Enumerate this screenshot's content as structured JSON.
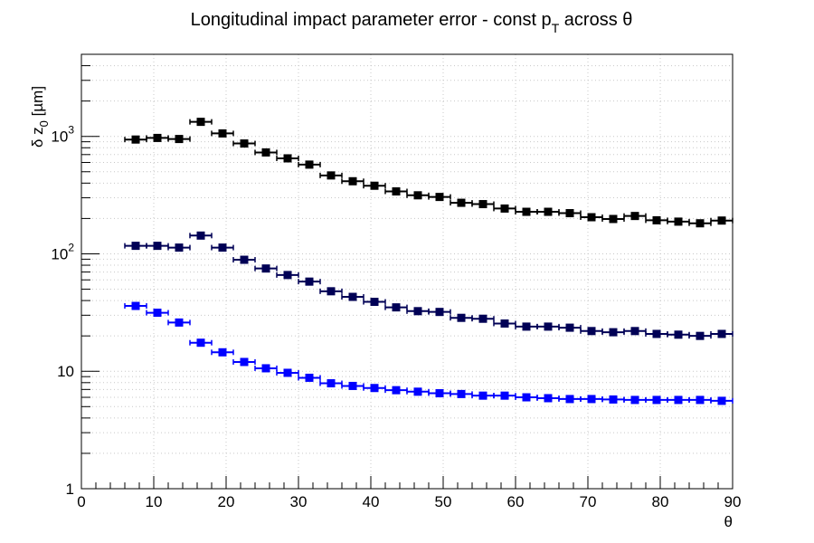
{
  "chart_data": {
    "type": "scatter",
    "title": {
      "main": "Longitudinal impact parameter error - const p",
      "sub": "T",
      "rest": " across θ"
    },
    "xlabel": "θ",
    "ylabel": {
      "main": "δ z",
      "sub": "0",
      "rest": " [µm]"
    },
    "xlim": [
      0,
      90
    ],
    "ylim": [
      1,
      5000
    ],
    "yscale": "log",
    "grid": true,
    "x_ticks": [
      {
        "v": 0,
        "label": "0"
      },
      {
        "v": 10,
        "label": "10"
      },
      {
        "v": 20,
        "label": "20"
      },
      {
        "v": 30,
        "label": "30"
      },
      {
        "v": 40,
        "label": "40"
      },
      {
        "v": 50,
        "label": "50"
      },
      {
        "v": 60,
        "label": "60"
      },
      {
        "v": 70,
        "label": "70"
      },
      {
        "v": 80,
        "label": "80"
      },
      {
        "v": 90,
        "label": "90"
      }
    ],
    "y_ticks": [
      {
        "v": 1,
        "base": "1",
        "exp": ""
      },
      {
        "v": 10,
        "base": "10",
        "exp": ""
      },
      {
        "v": 100,
        "base": "10",
        "exp": "2"
      },
      {
        "v": 1000,
        "base": "10",
        "exp": "3"
      }
    ],
    "x_bin_half_width": 1.5,
    "x": [
      7.5,
      10.5,
      13.5,
      16.5,
      19.5,
      22.5,
      25.5,
      28.5,
      31.5,
      34.5,
      37.5,
      40.5,
      43.5,
      46.5,
      49.5,
      52.5,
      55.5,
      58.5,
      61.5,
      64.5,
      67.5,
      70.5,
      73.5,
      76.5,
      79.5,
      82.5,
      85.5,
      88.5
    ],
    "series": [
      {
        "color": "#000000",
        "values": [
          940,
          970,
          950,
          1330,
          1060,
          870,
          730,
          650,
          575,
          465,
          415,
          380,
          340,
          315,
          305,
          272,
          265,
          243,
          228,
          228,
          222,
          205,
          198,
          210,
          193,
          188,
          182,
          192
        ]
      },
      {
        "color": "#000055",
        "values": [
          117,
          117,
          113,
          143,
          113,
          89,
          75,
          66,
          58,
          48,
          43,
          39,
          35,
          32.5,
          32,
          28.5,
          28,
          25.5,
          24,
          24,
          23.5,
          22,
          21.5,
          22,
          20.8,
          20.5,
          20,
          20.8
        ]
      },
      {
        "color": "#0000ff",
        "values": [
          36,
          31.5,
          26,
          17.5,
          14.5,
          12,
          10.6,
          9.7,
          8.8,
          7.9,
          7.5,
          7.2,
          6.9,
          6.7,
          6.5,
          6.4,
          6.2,
          6.2,
          6.0,
          5.9,
          5.8,
          5.8,
          5.75,
          5.7,
          5.7,
          5.7,
          5.7,
          5.6
        ]
      }
    ]
  }
}
